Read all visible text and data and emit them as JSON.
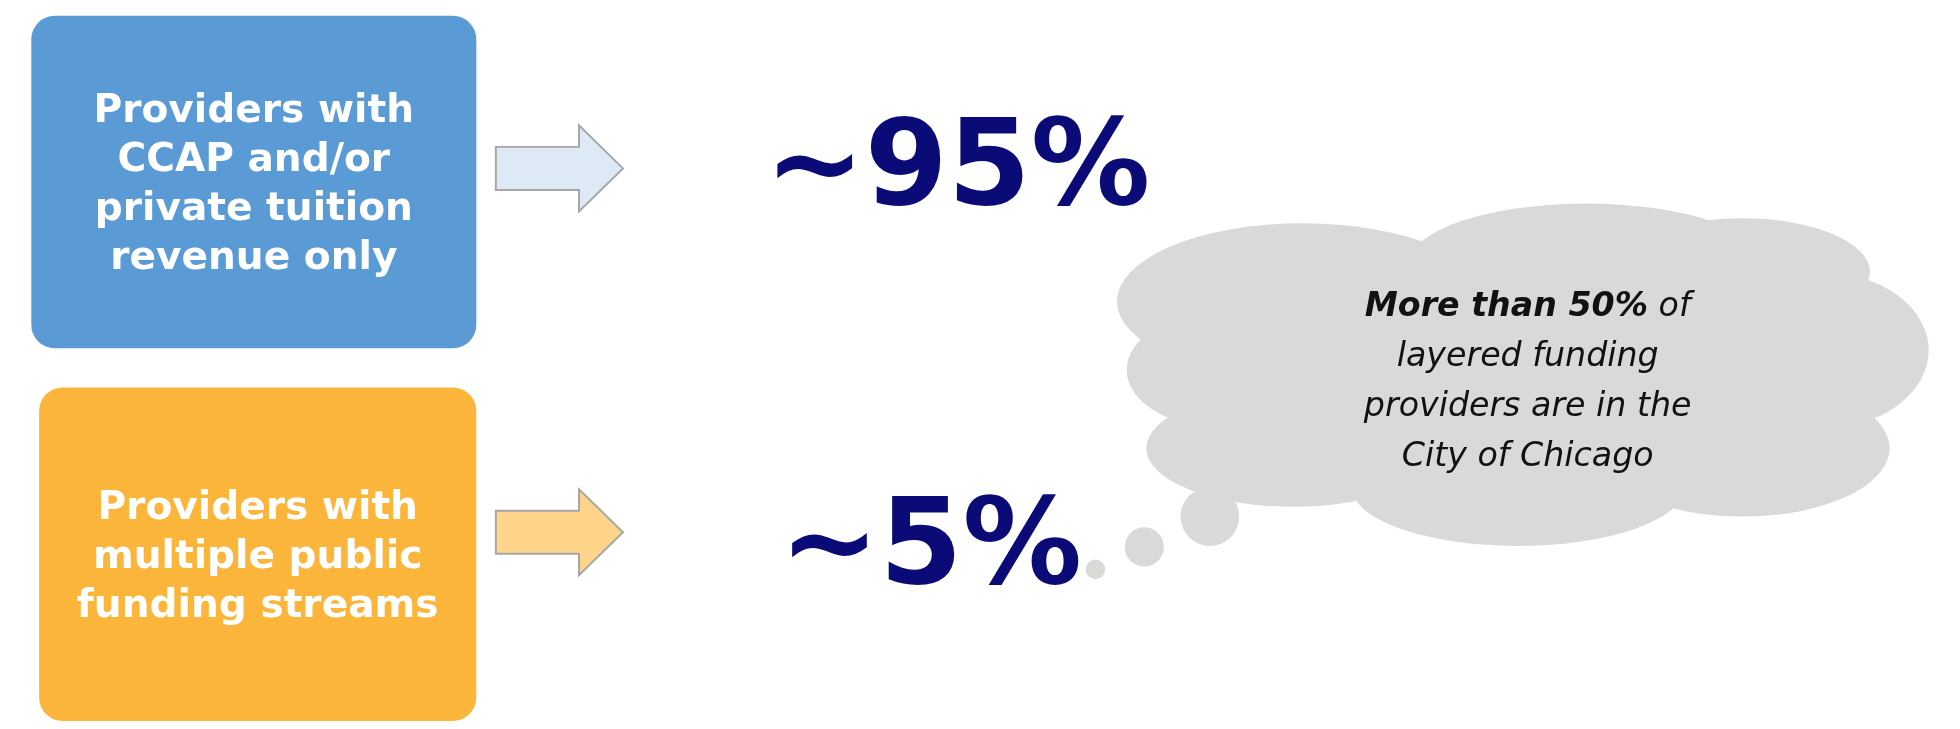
{
  "chart_data": {
    "type": "other",
    "categories": [
      "Providers with CCAP and/or private tuition revenue only",
      "Providers with multiple public funding streams"
    ],
    "values": [
      95,
      5
    ],
    "value_labels": [
      "~95%",
      "~5%"
    ],
    "colors": [
      "#5b9bd5",
      "#fbb53a"
    ],
    "annotations": [
      "More than 50%",
      "of layered funding providers are in the City of Chicago"
    ]
  }
}
